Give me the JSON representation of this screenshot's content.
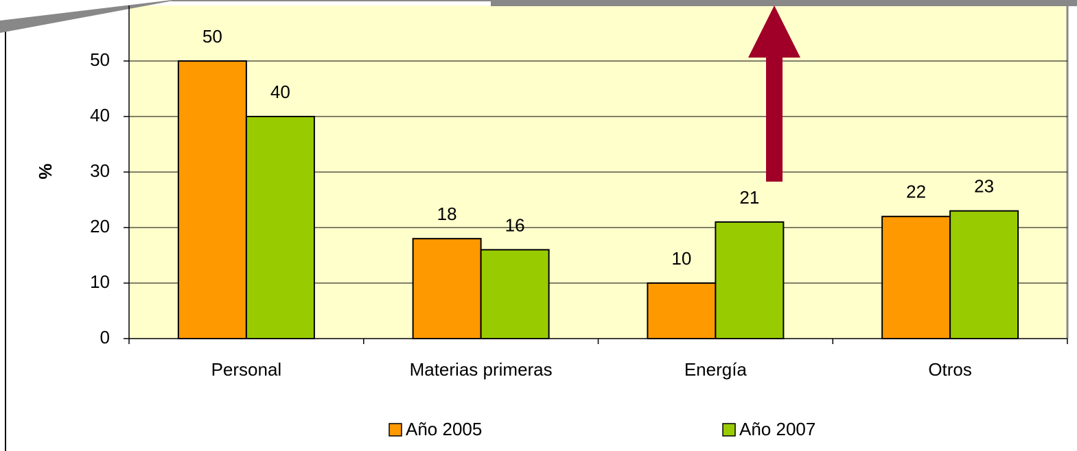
{
  "chart_data": {
    "type": "bar",
    "y_label": "%",
    "categories": [
      "Personal",
      "Materias primeras",
      "Energía",
      "Otros"
    ],
    "series": [
      {
        "name": "Año 2005",
        "color": "#ff9900",
        "values": [
          50,
          18,
          10,
          22
        ]
      },
      {
        "name": "Año 2007",
        "color": "#99cc00",
        "values": [
          40,
          16,
          21,
          23
        ]
      }
    ],
    "ylim": [
      0,
      60
    ],
    "yticks": [
      0,
      10,
      20,
      30,
      40,
      50
    ],
    "grid": true,
    "plot_background": "#ffffcc"
  }
}
